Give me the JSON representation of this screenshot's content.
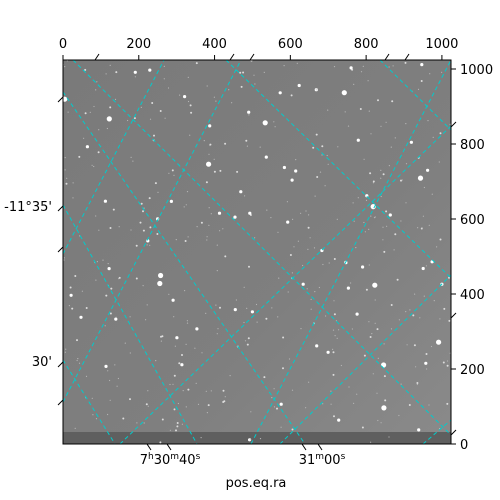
{
  "chart_data": {
    "type": "scatter",
    "title": "",
    "xlabel": "pos.eq.ra",
    "ylabel": "",
    "pixel_axes": {
      "xlim": [
        0,
        1024
      ],
      "ylim": [
        0,
        1024
      ],
      "top_ticks": [
        0,
        200,
        400,
        600,
        800,
        1000
      ],
      "right_ticks": [
        0,
        200,
        400,
        600,
        800,
        1000
      ]
    },
    "world_ticks": {
      "ra_labels": [
        {
          "text": "7h30m40s",
          "h": "7",
          "m": "30",
          "s": "40"
        },
        {
          "text": "31m00s",
          "m": "31",
          "s": "00"
        }
      ],
      "dec_labels": [
        "-11°35'",
        "30'"
      ]
    },
    "grid": true,
    "grid_color": "#00cccc",
    "image_background": "#7c7c7c"
  }
}
